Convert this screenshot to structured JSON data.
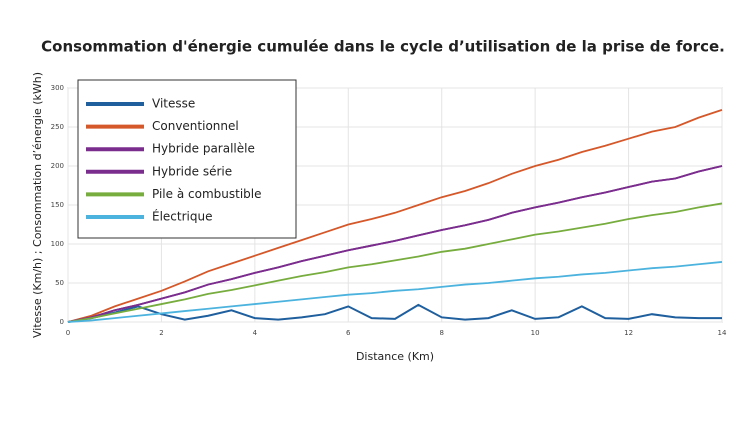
{
  "chart_data": {
    "type": "line",
    "title": "Consommation d'énergie cumulée dans le cycle d’utilisation de la prise de force.",
    "x_label": "Distance (Km)",
    "y_label": "Vitesse (Km/h) ; Consommation d’énergie (kWh)",
    "x": [
      0,
      0.5,
      1,
      1.5,
      2,
      2.5,
      3,
      3.5,
      4,
      4.5,
      5,
      5.5,
      6,
      6.5,
      7,
      7.5,
      8,
      8.5,
      9,
      9.5,
      10,
      10.5,
      11,
      11.5,
      12,
      12.5,
      13,
      13.5,
      14
    ],
    "series": [
      {
        "name": "Vitesse",
        "color": "#1f5f9e",
        "values": [
          0,
          5,
          12,
          20,
          10,
          3,
          8,
          15,
          5,
          3,
          6,
          10,
          20,
          5,
          4,
          22,
          6,
          3,
          5,
          15,
          4,
          6,
          20,
          5,
          4,
          10,
          6,
          5,
          5
        ]
      },
      {
        "name": "Conventionnel",
        "color": "#d4582a",
        "values": [
          0,
          8,
          20,
          30,
          40,
          52,
          65,
          75,
          85,
          95,
          105,
          115,
          125,
          132,
          140,
          150,
          160,
          168,
          178,
          190,
          200,
          208,
          218,
          226,
          235,
          244,
          250,
          262,
          272
        ]
      },
      {
        "name": "Hybride parallèle",
        "color": "#7b2d8e",
        "values": [
          0,
          6,
          15,
          22,
          30,
          38,
          48,
          55,
          63,
          70,
          78,
          85,
          92,
          98,
          104,
          111,
          118,
          124,
          131,
          140,
          147,
          153,
          160,
          166,
          173,
          180,
          184,
          193,
          200
        ]
      },
      {
        "name": "Hybride série",
        "color": "#7b2d8e",
        "values": [
          0,
          6,
          15,
          22,
          30,
          38,
          48,
          55,
          63,
          70,
          78,
          85,
          92,
          98,
          104,
          111,
          118,
          124,
          131,
          140,
          147,
          153,
          160,
          166,
          173,
          180,
          184,
          193,
          200
        ]
      },
      {
        "name": "Pile à combustible",
        "color": "#77ac3e",
        "values": [
          0,
          5,
          11,
          17,
          23,
          29,
          36,
          41,
          47,
          53,
          59,
          64,
          70,
          74,
          79,
          84,
          90,
          94,
          100,
          106,
          112,
          116,
          121,
          126,
          132,
          137,
          141,
          147,
          152
        ]
      },
      {
        "name": "Électrique",
        "color": "#4cb3de",
        "values": [
          0,
          2,
          5,
          8,
          11,
          14,
          17,
          20,
          23,
          26,
          29,
          32,
          35,
          37,
          40,
          42,
          45,
          48,
          50,
          53,
          56,
          58,
          61,
          63,
          66,
          69,
          71,
          74,
          77
        ]
      }
    ],
    "xlim": [
      0,
      14
    ],
    "xticks": [
      0,
      2,
      4,
      6,
      8,
      10,
      12,
      14
    ],
    "ylim": [
      0,
      300
    ],
    "yticks": [
      0,
      50,
      100,
      150,
      200,
      250,
      300
    ],
    "grid": true,
    "legend": "upper left"
  }
}
